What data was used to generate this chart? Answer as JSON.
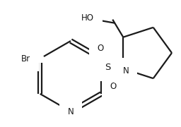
{
  "background_color": "#ffffff",
  "line_color": "#1a1a1a",
  "line_width": 1.6,
  "font_size": 8.5,
  "figsize": [
    2.56,
    1.8
  ],
  "dpi": 100,
  "xlim": [
    0,
    256
  ],
  "ylim": [
    0,
    180
  ]
}
